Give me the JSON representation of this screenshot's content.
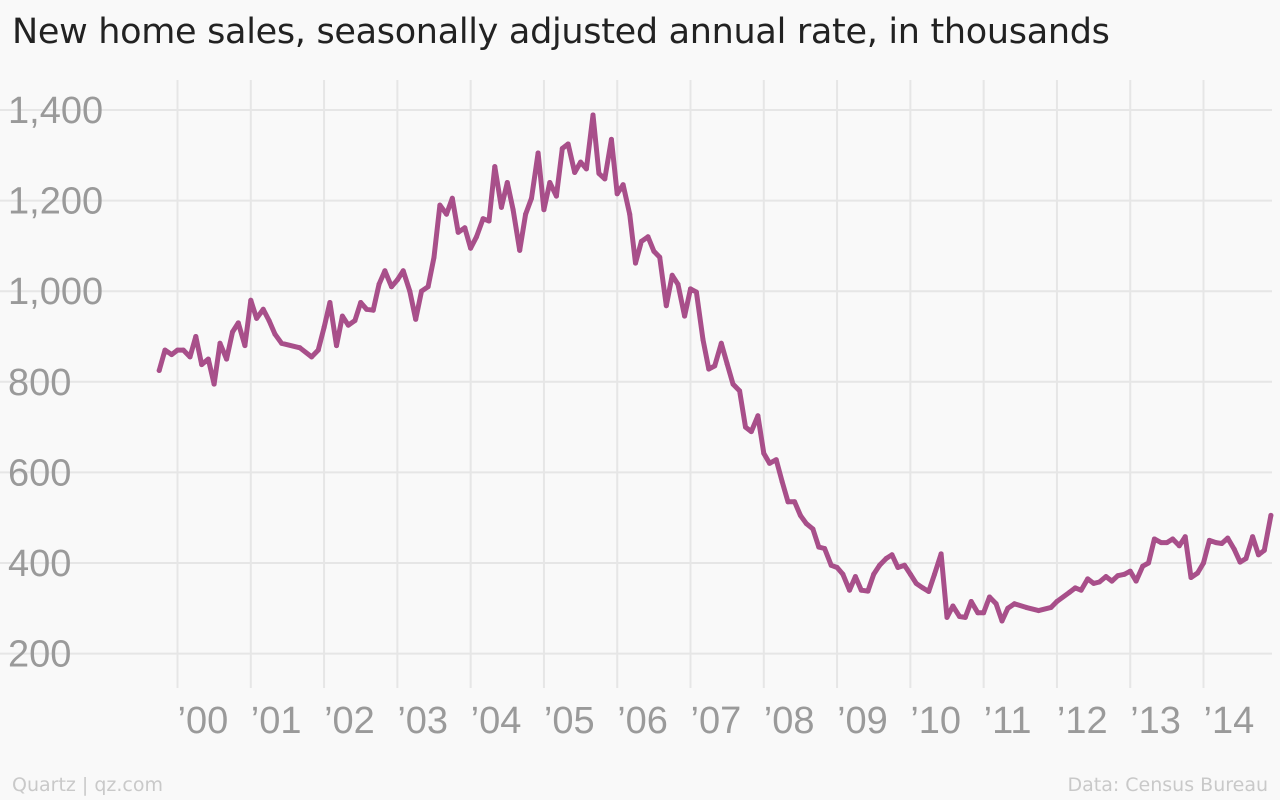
{
  "title": "New home sales, seasonally adjusted annual rate, in thousands",
  "footer": {
    "credit": "Quartz | qz.com",
    "source": "Data: Census Bureau"
  },
  "colors": {
    "line": "#a84f8a",
    "grid": "#e6e6e6",
    "tick": "#9a9a9a",
    "background": "#f9f9f9"
  },
  "chart_data": {
    "type": "line",
    "title": "New home sales, seasonally adjusted annual rate, in thousands",
    "xlabel": "",
    "ylabel": "",
    "y_ticks": [
      200,
      400,
      600,
      800,
      1000,
      1200,
      1400
    ],
    "y_tick_labels": [
      "200",
      "400",
      "600",
      "800",
      "1,000",
      "1,200",
      "1,400"
    ],
    "ylim": [
      200,
      1400
    ],
    "x_ticks": [
      2000,
      2001,
      2002,
      2003,
      2004,
      2005,
      2006,
      2007,
      2008,
      2009,
      2010,
      2011,
      2012,
      2013,
      2014
    ],
    "x_tick_labels": [
      "’00",
      "’01",
      "’02",
      "’03",
      "’04",
      "’05",
      "’06",
      "’07",
      "’08",
      "’09",
      "’10",
      "’11",
      "’12",
      "’13",
      "’14"
    ],
    "xlim": [
      1999.7,
      2014.7
    ],
    "grid": true,
    "series": [
      {
        "values": [
          [
            1999.75,
            825
          ],
          [
            1999.83,
            870
          ],
          [
            1999.92,
            860
          ],
          [
            2000.0,
            870
          ],
          [
            2000.08,
            870
          ],
          [
            2000.17,
            855
          ],
          [
            2000.25,
            900
          ],
          [
            2000.33,
            838
          ],
          [
            2000.42,
            850
          ],
          [
            2000.5,
            795
          ],
          [
            2000.58,
            885
          ],
          [
            2000.67,
            850
          ],
          [
            2000.75,
            910
          ],
          [
            2000.83,
            930
          ],
          [
            2000.92,
            880
          ],
          [
            2001.0,
            980
          ],
          [
            2001.08,
            940
          ],
          [
            2001.17,
            960
          ],
          [
            2001.25,
            935
          ],
          [
            2001.33,
            905
          ],
          [
            2001.42,
            885
          ],
          [
            2001.67,
            875
          ],
          [
            2001.83,
            855
          ],
          [
            2001.92,
            870
          ],
          [
            2002.0,
            920
          ],
          [
            2002.08,
            975
          ],
          [
            2002.17,
            880
          ],
          [
            2002.25,
            945
          ],
          [
            2002.33,
            925
          ],
          [
            2002.42,
            935
          ],
          [
            2002.5,
            975
          ],
          [
            2002.58,
            960
          ],
          [
            2002.67,
            958
          ],
          [
            2002.75,
            1015
          ],
          [
            2002.83,
            1045
          ],
          [
            2002.92,
            1010
          ],
          [
            2003.0,
            1025
          ],
          [
            2003.08,
            1045
          ],
          [
            2003.17,
            1000
          ],
          [
            2003.25,
            938
          ],
          [
            2003.33,
            1000
          ],
          [
            2003.42,
            1010
          ],
          [
            2003.5,
            1075
          ],
          [
            2003.58,
            1190
          ],
          [
            2003.67,
            1170
          ],
          [
            2003.75,
            1205
          ],
          [
            2003.83,
            1130
          ],
          [
            2003.92,
            1140
          ],
          [
            2004.0,
            1095
          ],
          [
            2004.08,
            1120
          ],
          [
            2004.17,
            1160
          ],
          [
            2004.25,
            1155
          ],
          [
            2004.33,
            1275
          ],
          [
            2004.42,
            1185
          ],
          [
            2004.5,
            1240
          ],
          [
            2004.58,
            1180
          ],
          [
            2004.67,
            1090
          ],
          [
            2004.75,
            1170
          ],
          [
            2004.83,
            1205
          ],
          [
            2004.92,
            1305
          ],
          [
            2005.0,
            1180
          ],
          [
            2005.08,
            1240
          ],
          [
            2005.17,
            1210
          ],
          [
            2005.25,
            1315
          ],
          [
            2005.33,
            1325
          ],
          [
            2005.42,
            1262
          ],
          [
            2005.5,
            1285
          ],
          [
            2005.58,
            1270
          ],
          [
            2005.67,
            1389
          ],
          [
            2005.75,
            1260
          ],
          [
            2005.83,
            1248
          ],
          [
            2005.92,
            1335
          ],
          [
            2006.0,
            1215
          ],
          [
            2006.08,
            1235
          ],
          [
            2006.17,
            1170
          ],
          [
            2006.25,
            1062
          ],
          [
            2006.33,
            1110
          ],
          [
            2006.42,
            1120
          ],
          [
            2006.5,
            1088
          ],
          [
            2006.58,
            1075
          ],
          [
            2006.67,
            968
          ],
          [
            2006.75,
            1035
          ],
          [
            2006.83,
            1015
          ],
          [
            2006.92,
            945
          ],
          [
            2007.0,
            1005
          ],
          [
            2007.08,
            998
          ],
          [
            2007.17,
            893
          ],
          [
            2007.25,
            828
          ],
          [
            2007.33,
            835
          ],
          [
            2007.42,
            885
          ],
          [
            2007.5,
            840
          ],
          [
            2007.58,
            795
          ],
          [
            2007.67,
            780
          ],
          [
            2007.75,
            700
          ],
          [
            2007.83,
            690
          ],
          [
            2007.92,
            725
          ],
          [
            2008.0,
            642
          ],
          [
            2008.08,
            620
          ],
          [
            2008.17,
            628
          ],
          [
            2008.25,
            580
          ],
          [
            2008.33,
            535
          ],
          [
            2008.42,
            535
          ],
          [
            2008.5,
            505
          ],
          [
            2008.58,
            487
          ],
          [
            2008.67,
            475
          ],
          [
            2008.75,
            435
          ],
          [
            2008.83,
            432
          ],
          [
            2008.92,
            395
          ],
          [
            2009.0,
            390
          ],
          [
            2009.08,
            375
          ],
          [
            2009.17,
            340
          ],
          [
            2009.25,
            370
          ],
          [
            2009.33,
            340
          ],
          [
            2009.42,
            338
          ],
          [
            2009.5,
            375
          ],
          [
            2009.58,
            395
          ],
          [
            2009.67,
            410
          ],
          [
            2009.75,
            418
          ],
          [
            2009.83,
            390
          ],
          [
            2009.92,
            395
          ],
          [
            2010.0,
            375
          ],
          [
            2010.08,
            355
          ],
          [
            2010.17,
            345
          ],
          [
            2010.25,
            337
          ],
          [
            2010.33,
            375
          ],
          [
            2010.42,
            420
          ],
          [
            2010.5,
            280
          ],
          [
            2010.58,
            305
          ],
          [
            2010.67,
            282
          ],
          [
            2010.75,
            280
          ],
          [
            2010.83,
            315
          ],
          [
            2010.92,
            290
          ],
          [
            2011.0,
            290
          ],
          [
            2011.08,
            325
          ],
          [
            2011.17,
            310
          ],
          [
            2011.25,
            272
          ],
          [
            2011.33,
            300
          ],
          [
            2011.42,
            310
          ],
          [
            2011.58,
            302
          ],
          [
            2011.75,
            295
          ],
          [
            2011.92,
            302
          ],
          [
            2012.0,
            315
          ],
          [
            2012.17,
            335
          ],
          [
            2012.25,
            345
          ],
          [
            2012.33,
            340
          ],
          [
            2012.42,
            365
          ],
          [
            2012.5,
            355
          ],
          [
            2012.58,
            358
          ],
          [
            2012.67,
            370
          ],
          [
            2012.75,
            360
          ],
          [
            2012.83,
            372
          ],
          [
            2012.92,
            375
          ],
          [
            2013.0,
            382
          ],
          [
            2013.08,
            360
          ],
          [
            2013.17,
            393
          ],
          [
            2013.25,
            400
          ],
          [
            2013.33,
            453
          ],
          [
            2013.42,
            445
          ],
          [
            2013.5,
            445
          ],
          [
            2013.58,
            453
          ],
          [
            2013.67,
            438
          ],
          [
            2013.75,
            458
          ],
          [
            2013.83,
            368
          ],
          [
            2013.92,
            378
          ],
          [
            2014.0,
            400
          ],
          [
            2014.08,
            450
          ],
          [
            2014.17,
            445
          ],
          [
            2014.25,
            443
          ],
          [
            2014.33,
            455
          ],
          [
            2014.42,
            430
          ],
          [
            2014.5,
            402
          ],
          [
            2014.58,
            410
          ],
          [
            2014.67,
            458
          ],
          [
            2014.75,
            418
          ],
          [
            2014.83,
            428
          ],
          [
            2014.92,
            505
          ]
        ]
      }
    ]
  }
}
